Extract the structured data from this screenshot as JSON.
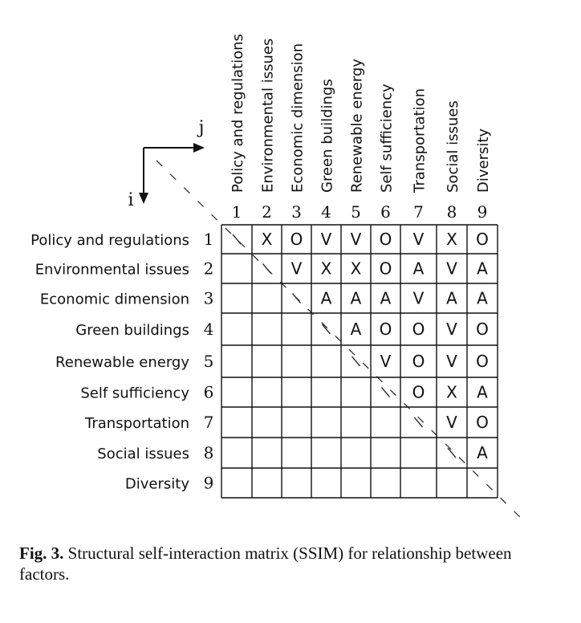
{
  "axes": {
    "column_axis": "j",
    "row_axis": "i"
  },
  "factors": [
    "Policy and regulations",
    "Environmental issues",
    "Economic dimension",
    "Green buildings",
    "Renewable energy",
    "Self sufficiency",
    "Transportation",
    "Social issues",
    "Diversity"
  ],
  "indices": [
    "1",
    "2",
    "3",
    "4",
    "5",
    "6",
    "7",
    "8",
    "9"
  ],
  "diagonal_mark": "\\",
  "matrix": [
    [
      "\\",
      "X",
      "O",
      "V",
      "V",
      "O",
      "V",
      "X",
      "O"
    ],
    [
      "",
      "\\",
      "V",
      "X",
      "X",
      "O",
      "A",
      "V",
      "A"
    ],
    [
      "",
      "",
      "\\",
      "A",
      "A",
      "A",
      "V",
      "A",
      "A"
    ],
    [
      "",
      "",
      "",
      "\\",
      "A",
      "O",
      "O",
      "V",
      "O"
    ],
    [
      "",
      "",
      "",
      "",
      "\\",
      "V",
      "O",
      "V",
      "O"
    ],
    [
      "",
      "",
      "",
      "",
      "",
      "\\",
      "O",
      "X",
      "A"
    ],
    [
      "",
      "",
      "",
      "",
      "",
      "",
      "\\",
      "V",
      "O"
    ],
    [
      "",
      "",
      "",
      "",
      "",
      "",
      "",
      "\\",
      "A"
    ],
    [
      "",
      "",
      "",
      "",
      "",
      "",
      "",
      "",
      ""
    ]
  ],
  "caption": {
    "label": "Fig. 3.",
    "text": "Structural self-interaction matrix (SSIM) for relationship between factors."
  }
}
